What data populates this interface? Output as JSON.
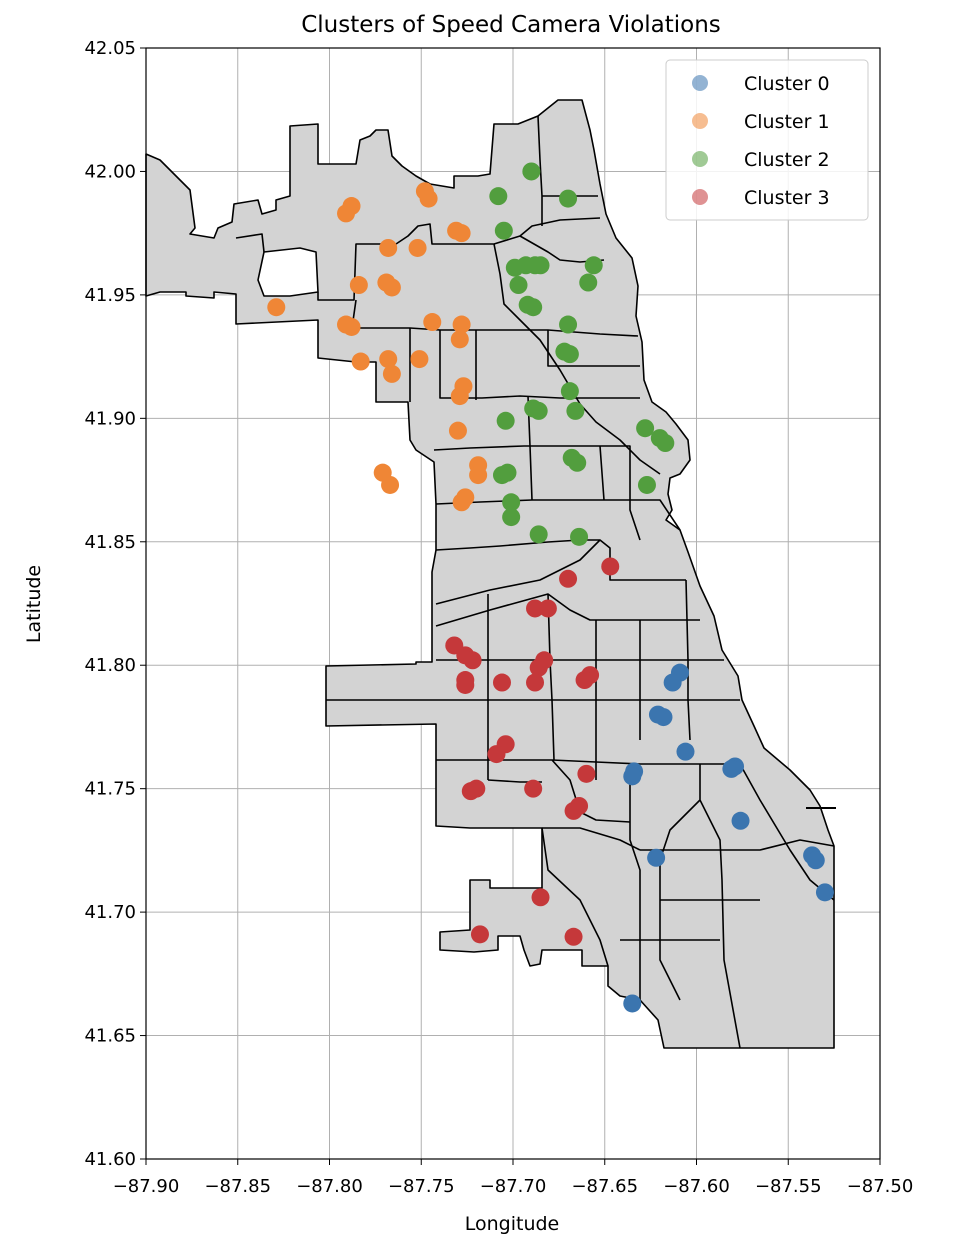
{
  "chart_data": {
    "type": "scatter",
    "title": "Clusters of Speed Camera Violations",
    "xlabel": "Longitude",
    "ylabel": "Latitude",
    "xlim": [
      -87.9,
      -87.5
    ],
    "ylim": [
      41.6,
      42.05
    ],
    "xticks": [
      -87.9,
      -87.85,
      -87.8,
      -87.75,
      -87.7,
      -87.65,
      -87.6,
      -87.55,
      -87.5
    ],
    "xtick_labels": [
      "−87.90",
      "−87.85",
      "−87.80",
      "−87.75",
      "−87.70",
      "−87.65",
      "−87.60",
      "−87.55",
      "−87.50"
    ],
    "yticks": [
      41.6,
      41.65,
      41.7,
      41.75,
      41.8,
      41.85,
      41.9,
      41.95,
      42.0,
      42.05
    ],
    "ytick_labels": [
      "41.60",
      "41.65",
      "41.70",
      "41.75",
      "41.80",
      "41.85",
      "41.90",
      "41.95",
      "42.00",
      "42.05"
    ],
    "grid": true,
    "legend_position": "top-right",
    "series": [
      {
        "name": "Cluster 0",
        "color": "#3b75af",
        "points": [
          [
            -87.609,
            41.797
          ],
          [
            -87.613,
            41.793
          ],
          [
            -87.621,
            41.78
          ],
          [
            -87.618,
            41.779
          ],
          [
            -87.606,
            41.765
          ],
          [
            -87.579,
            41.759
          ],
          [
            -87.581,
            41.758
          ],
          [
            -87.634,
            41.757
          ],
          [
            -87.635,
            41.755
          ],
          [
            -87.576,
            41.737
          ],
          [
            -87.537,
            41.723
          ],
          [
            -87.535,
            41.721
          ],
          [
            -87.622,
            41.722
          ],
          [
            -87.53,
            41.708
          ],
          [
            -87.635,
            41.663
          ]
        ]
      },
      {
        "name": "Cluster 1",
        "color": "#ef8636",
        "points": [
          [
            -87.748,
            41.992
          ],
          [
            -87.746,
            41.989
          ],
          [
            -87.788,
            41.986
          ],
          [
            -87.791,
            41.983
          ],
          [
            -87.731,
            41.976
          ],
          [
            -87.728,
            41.975
          ],
          [
            -87.768,
            41.969
          ],
          [
            -87.752,
            41.969
          ],
          [
            -87.784,
            41.954
          ],
          [
            -87.769,
            41.955
          ],
          [
            -87.766,
            41.953
          ],
          [
            -87.829,
            41.945
          ],
          [
            -87.744,
            41.939
          ],
          [
            -87.728,
            41.938
          ],
          [
            -87.791,
            41.938
          ],
          [
            -87.788,
            41.937
          ],
          [
            -87.729,
            41.932
          ],
          [
            -87.768,
            41.924
          ],
          [
            -87.783,
            41.923
          ],
          [
            -87.751,
            41.924
          ],
          [
            -87.766,
            41.918
          ],
          [
            -87.727,
            41.913
          ],
          [
            -87.729,
            41.909
          ],
          [
            -87.73,
            41.895
          ],
          [
            -87.719,
            41.881
          ],
          [
            -87.719,
            41.877
          ],
          [
            -87.771,
            41.878
          ],
          [
            -87.767,
            41.873
          ],
          [
            -87.726,
            41.868
          ],
          [
            -87.728,
            41.866
          ]
        ]
      },
      {
        "name": "Cluster 2",
        "color": "#529e3e",
        "points": [
          [
            -87.69,
            42.0
          ],
          [
            -87.67,
            41.989
          ],
          [
            -87.708,
            41.99
          ],
          [
            -87.705,
            41.976
          ],
          [
            -87.699,
            41.961
          ],
          [
            -87.693,
            41.962
          ],
          [
            -87.688,
            41.962
          ],
          [
            -87.685,
            41.962
          ],
          [
            -87.656,
            41.962
          ],
          [
            -87.697,
            41.954
          ],
          [
            -87.692,
            41.946
          ],
          [
            -87.689,
            41.945
          ],
          [
            -87.659,
            41.955
          ],
          [
            -87.67,
            41.938
          ],
          [
            -87.672,
            41.927
          ],
          [
            -87.669,
            41.926
          ],
          [
            -87.669,
            41.911
          ],
          [
            -87.689,
            41.904
          ],
          [
            -87.686,
            41.903
          ],
          [
            -87.666,
            41.903
          ],
          [
            -87.704,
            41.899
          ],
          [
            -87.628,
            41.896
          ],
          [
            -87.62,
            41.892
          ],
          [
            -87.617,
            41.89
          ],
          [
            -87.706,
            41.877
          ],
          [
            -87.703,
            41.878
          ],
          [
            -87.668,
            41.884
          ],
          [
            -87.665,
            41.882
          ],
          [
            -87.627,
            41.873
          ],
          [
            -87.701,
            41.866
          ],
          [
            -87.701,
            41.86
          ],
          [
            -87.686,
            41.853
          ],
          [
            -87.664,
            41.852
          ]
        ]
      },
      {
        "name": "Cluster 3",
        "color": "#c5383a",
        "points": [
          [
            -87.647,
            41.84
          ],
          [
            -87.67,
            41.835
          ],
          [
            -87.688,
            41.823
          ],
          [
            -87.681,
            41.823
          ],
          [
            -87.732,
            41.808
          ],
          [
            -87.726,
            41.804
          ],
          [
            -87.722,
            41.802
          ],
          [
            -87.683,
            41.802
          ],
          [
            -87.686,
            41.799
          ],
          [
            -87.658,
            41.796
          ],
          [
            -87.661,
            41.794
          ],
          [
            -87.726,
            41.794
          ],
          [
            -87.726,
            41.792
          ],
          [
            -87.706,
            41.793
          ],
          [
            -87.688,
            41.793
          ],
          [
            -87.704,
            41.768
          ],
          [
            -87.709,
            41.764
          ],
          [
            -87.66,
            41.756
          ],
          [
            -87.72,
            41.75
          ],
          [
            -87.723,
            41.749
          ],
          [
            -87.689,
            41.75
          ],
          [
            -87.664,
            41.743
          ],
          [
            -87.667,
            41.741
          ],
          [
            -87.685,
            41.706
          ],
          [
            -87.718,
            41.691
          ],
          [
            -87.667,
            41.69
          ]
        ]
      }
    ]
  }
}
